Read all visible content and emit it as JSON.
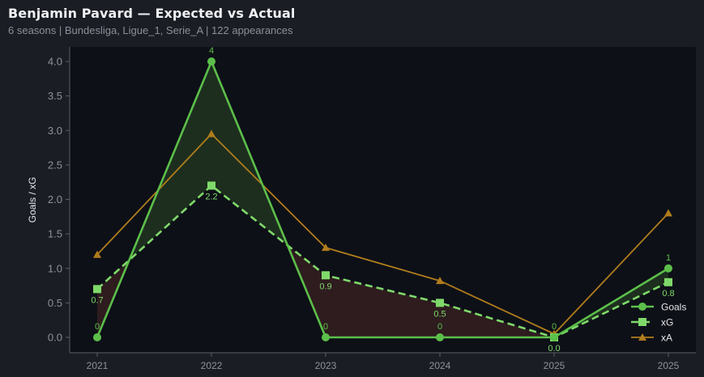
{
  "header": {
    "title": "Benjamin Pavard — Expected vs Actual",
    "subtitle": "6 seasons | Bundesliga, Ligue_1, Serie_A | 122 appearances"
  },
  "colors": {
    "background": "#1a1d24",
    "plot_background": "#0d1017",
    "goals": "#5cbf4a",
    "xg": "#7fd96a",
    "xa": "#b07d1c",
    "over_fill": "#1d2e1f",
    "under_fill": "#2e1c1f",
    "axis": "#5a5e68",
    "tick_text": "#8e929b"
  },
  "chart_data": {
    "type": "line",
    "title": "Benjamin Pavard — Expected vs Actual",
    "subtitle": "6 seasons | Bundesliga, Ligue_1, Serie_A | 122 appearances",
    "xlabel": "",
    "ylabel": "Goals / xG",
    "categories": [
      "2021",
      "2022",
      "2023",
      "2024",
      "2025",
      "2025"
    ],
    "ylim": [
      0,
      4.0
    ],
    "yticks": [
      "0.0",
      "0.5",
      "1.0",
      "1.5",
      "2.0",
      "2.5",
      "3.0",
      "3.5",
      "4.0"
    ],
    "grid": false,
    "legend_position": "lower right",
    "series": [
      {
        "name": "Goals",
        "values": [
          0,
          4,
          0,
          0,
          0,
          1
        ],
        "labels": [
          "0",
          "4",
          "0",
          "0",
          "0",
          "1"
        ],
        "marker": "circle",
        "style": "solid"
      },
      {
        "name": "xG",
        "values": [
          0.7,
          2.2,
          0.9,
          0.5,
          0.0,
          0.8
        ],
        "labels": [
          "0.7",
          "2.2",
          "0.9",
          "0.5",
          "0.0",
          "0.8"
        ],
        "marker": "square",
        "style": "dashed"
      },
      {
        "name": "xA",
        "values": [
          1.2,
          2.95,
          1.3,
          0.82,
          0.05,
          1.8
        ],
        "marker": "triangle",
        "style": "solid"
      }
    ]
  }
}
